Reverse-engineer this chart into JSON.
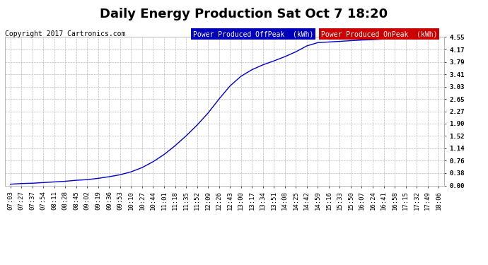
{
  "title": "Daily Energy Production Sat Oct 7 18:20",
  "copyright": "Copyright 2017 Cartronics.com",
  "legend_offpeak": "Power Produced OffPeak  (kWh)",
  "legend_onpeak": "Power Produced OnPeak  (kWh)",
  "line_color": "#0000cc",
  "bg_color": "#ffffff",
  "plot_bg_color": "#ffffff",
  "grid_color": "#bbbbbb",
  "ylim": [
    0.0,
    4.55
  ],
  "yticks": [
    0.0,
    0.38,
    0.76,
    1.14,
    1.52,
    1.9,
    2.27,
    2.65,
    3.03,
    3.41,
    3.79,
    4.17,
    4.55
  ],
  "x_labels": [
    "07:03",
    "07:27",
    "07:37",
    "07:54",
    "08:11",
    "08:28",
    "08:45",
    "09:02",
    "09:19",
    "09:36",
    "09:53",
    "10:10",
    "10:27",
    "10:44",
    "11:01",
    "11:18",
    "11:35",
    "11:52",
    "12:09",
    "12:26",
    "12:43",
    "13:00",
    "13:17",
    "13:34",
    "13:51",
    "14:08",
    "14:25",
    "14:42",
    "14:59",
    "15:16",
    "15:33",
    "15:50",
    "16:07",
    "16:24",
    "16:41",
    "16:58",
    "17:15",
    "17:32",
    "17:49",
    "18:06"
  ],
  "y_values": [
    0.04,
    0.06,
    0.07,
    0.09,
    0.11,
    0.13,
    0.16,
    0.18,
    0.22,
    0.27,
    0.33,
    0.42,
    0.55,
    0.73,
    0.95,
    1.22,
    1.52,
    1.85,
    2.22,
    2.65,
    3.05,
    3.35,
    3.55,
    3.7,
    3.82,
    3.95,
    4.1,
    4.28,
    4.38,
    4.4,
    4.42,
    4.44,
    4.46,
    4.47,
    4.49,
    4.51,
    4.52,
    4.53,
    4.54,
    4.55
  ],
  "title_fontsize": 13,
  "tick_fontsize": 6.5,
  "copyright_fontsize": 7,
  "legend_fontsize": 7,
  "offpeak_bg": "#0000bb",
  "onpeak_bg": "#cc0000"
}
